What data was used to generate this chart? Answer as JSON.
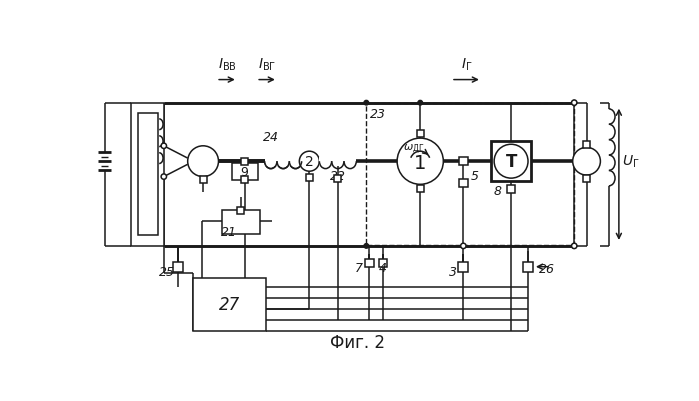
{
  "title": "Фиг. 2",
  "bg": "#ffffff",
  "lc": "#1a1a1a",
  "fw": 6.99,
  "fh": 4.02,
  "dpi": 100
}
